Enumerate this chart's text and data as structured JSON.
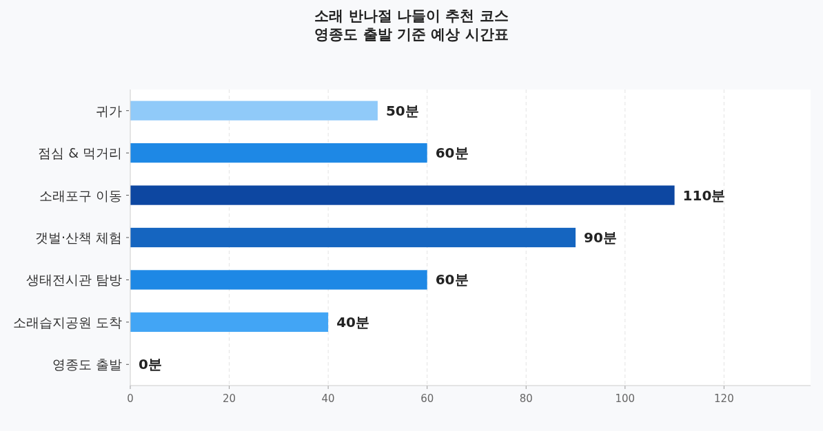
{
  "chart_data": {
    "type": "bar",
    "orientation": "horizontal",
    "title": "소래 반나절 나들이 추천 코스",
    "subtitle": "영종도 출발 기준 예상 시간표",
    "categories": [
      "귀가",
      "점심 & 먹거리",
      "소래포구 이동",
      "갯벌·산책 체험",
      "생태전시관 탐방",
      "소래습지공원 도착",
      "영종도 출발"
    ],
    "values": [
      50,
      60,
      110,
      90,
      60,
      40,
      0
    ],
    "colors": [
      "#90caf9",
      "#1e88e5",
      "#0d47a1",
      "#1565c0",
      "#1e88e5",
      "#42a5f5",
      "#bbdefb"
    ],
    "value_labels": [
      "50분",
      "60분",
      "110분",
      "90분",
      "60분",
      "40분",
      "0분"
    ],
    "xlim": [
      0,
      137.5
    ],
    "xticks": [
      0,
      20,
      40,
      60,
      80,
      100,
      120
    ],
    "grid": "x"
  }
}
